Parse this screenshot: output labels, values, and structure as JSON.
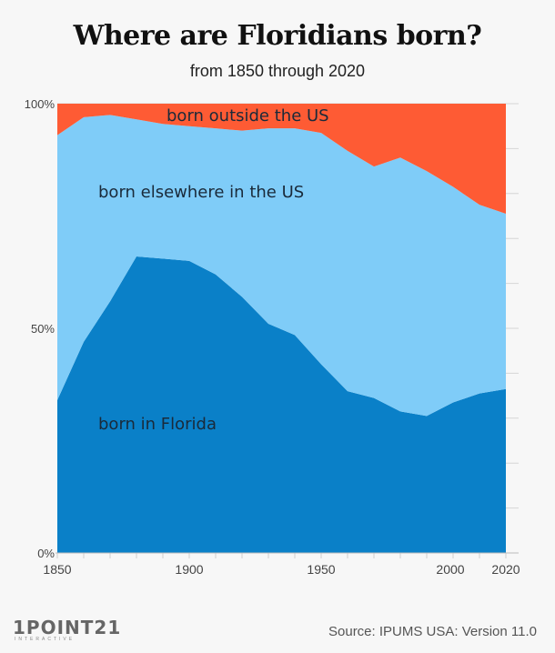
{
  "chart_data": {
    "type": "area",
    "stacked": true,
    "percent": true,
    "title": "Where are Floridians born?",
    "subtitle": "from 1850 through 2020",
    "x": [
      1850,
      1860,
      1870,
      1880,
      1890,
      1900,
      1910,
      1920,
      1930,
      1940,
      1950,
      1960,
      1970,
      1980,
      1990,
      2000,
      2010,
      2020
    ],
    "x_ticks": [
      "1850",
      "1900",
      "1950",
      "2000",
      "2020"
    ],
    "y_ticks": [
      "0%",
      "50%",
      "100%"
    ],
    "ylim": [
      0,
      100
    ],
    "series": [
      {
        "name": "born in Florida",
        "color": "#0a80c8",
        "values": [
          34,
          47,
          56,
          66,
          65.5,
          65,
          62,
          57,
          51,
          48.5,
          42,
          36,
          34.5,
          31.5,
          30.5,
          33.5,
          35.5,
          36.5
        ]
      },
      {
        "name": "born elsewhere in the US",
        "color": "#7fccf8",
        "values": [
          59,
          50,
          41.5,
          30.5,
          30,
          30,
          32.5,
          37,
          43.5,
          46,
          51.5,
          53.5,
          51.5,
          56.5,
          54.5,
          48,
          42,
          39
        ]
      },
      {
        "name": "born outside the US",
        "color": "#fe5b34",
        "values": [
          7,
          3,
          2.5,
          3.5,
          4.5,
          5,
          5.5,
          6,
          5.5,
          5.5,
          6.5,
          10.5,
          14,
          12,
          15,
          18.5,
          22.5,
          24.5
        ]
      }
    ]
  },
  "source": "Source: IPUMS USA: Version 11.0",
  "logo": {
    "main": "1POINT21",
    "sub": "INTERACTIVE"
  }
}
